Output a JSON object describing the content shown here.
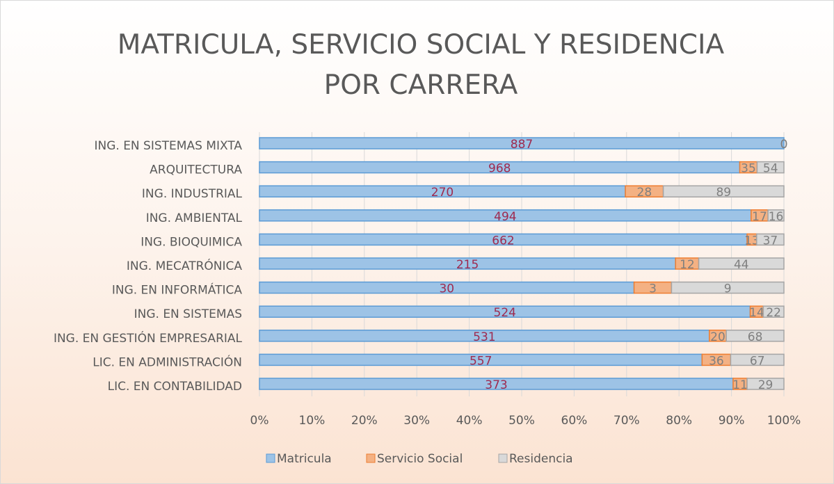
{
  "chart_data": {
    "type": "bar",
    "orientation": "horizontal",
    "stacking": "percent",
    "title": "MATRICULA, SERVICIO SOCIAL Y RESIDENCIA POR CARRERA",
    "categories": [
      "ING. EN SISTEMAS MIXTA",
      "ARQUITECTURA",
      "ING. INDUSTRIAL",
      "ING. AMBIENTAL",
      "ING. BIOQUIMICA",
      "ING. MECATRÓNICA",
      "ING. EN INFORMÁTICA",
      "ING. EN SISTEMAS",
      "ING. EN GESTIÓN EMPRESARIAL",
      "LIC. EN ADMINISTRACIÓN",
      "LIC. EN CONTABILIDAD"
    ],
    "series": [
      {
        "name": "Matricula",
        "color": "#9dc3e6",
        "values": [
          887,
          968,
          270,
          494,
          662,
          215,
          30,
          524,
          531,
          557,
          373
        ]
      },
      {
        "name": "Servicio Social",
        "color": "#f4b183",
        "values": [
          0,
          35,
          28,
          17,
          13,
          12,
          3,
          14,
          20,
          36,
          11
        ]
      },
      {
        "name": "Residencia",
        "color": "#d9d9d9",
        "values": [
          0,
          54,
          89,
          16,
          37,
          44,
          9,
          22,
          68,
          67,
          29
        ]
      }
    ],
    "xlim": [
      0,
      100
    ],
    "xticks": [
      {
        "value": 0,
        "label": "0%"
      },
      {
        "value": 10,
        "label": "10%"
      },
      {
        "value": 20,
        "label": "20%"
      },
      {
        "value": 30,
        "label": "30%"
      },
      {
        "value": 40,
        "label": "40%"
      },
      {
        "value": 50,
        "label": "50%"
      },
      {
        "value": 60,
        "label": "60%"
      },
      {
        "value": 70,
        "label": "70%"
      },
      {
        "value": 80,
        "label": "80%"
      },
      {
        "value": 90,
        "label": "90%"
      },
      {
        "value": 100,
        "label": "100%"
      }
    ],
    "grid": true,
    "legend": "bottom"
  }
}
